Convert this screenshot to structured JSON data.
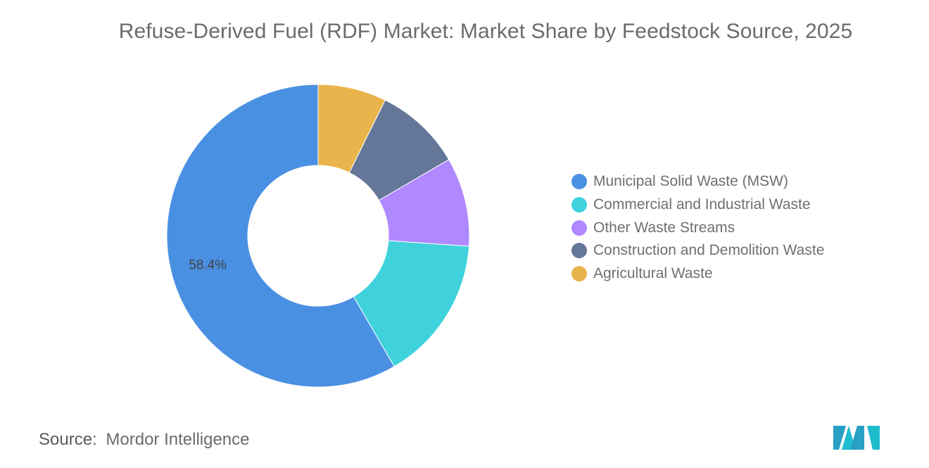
{
  "title": "Refuse-Derived Fuel (RDF) Market: Market Share by Feedstock Source, 2025",
  "source": {
    "label": "Source:",
    "value": "Mordor Intelligence"
  },
  "chart_data": {
    "type": "pie",
    "variant": "donut",
    "categories": [
      "Municipal Solid Waste (MSW)",
      "Commercial and Industrial Waste",
      "Other Waste Streams",
      "Construction and Demolition Waste",
      "Agricultural Waste"
    ],
    "values": [
      58.4,
      15.5,
      9.5,
      9.3,
      7.3
    ],
    "colors": [
      "#4a90e2",
      "#3fd2dc",
      "#b088ff",
      "#657798",
      "#e9b44c"
    ],
    "data_labels": [
      {
        "category": "Municipal Solid Waste (MSW)",
        "text": "58.4%"
      }
    ],
    "legend_position": "right"
  }
}
